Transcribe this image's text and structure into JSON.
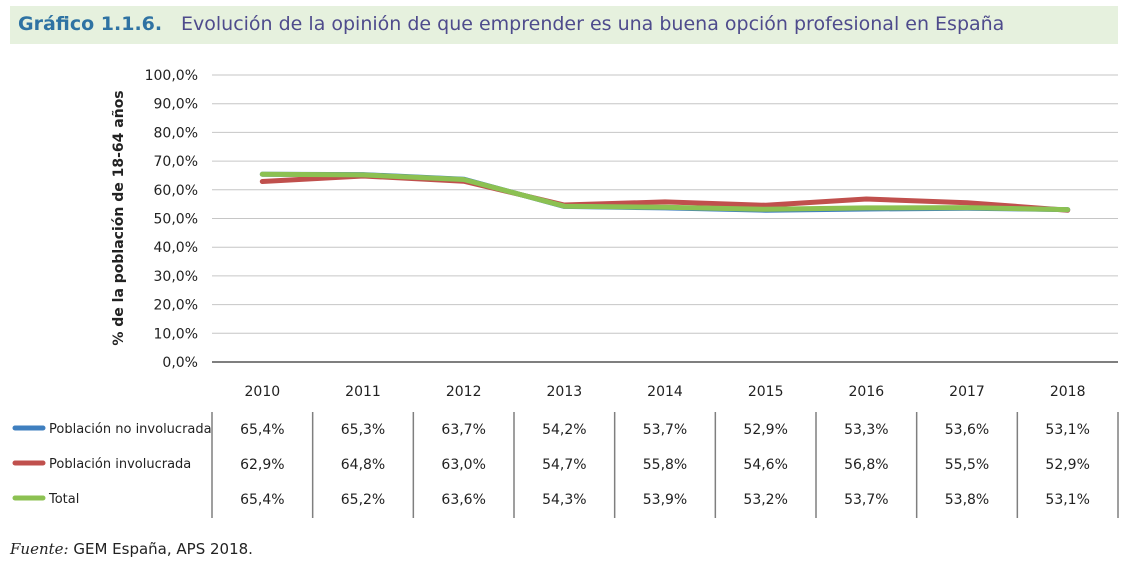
{
  "header": {
    "figure_label": "Gráfico 1.1.6.",
    "title": "Evolución de la opinión de que emprender es una buena opción profesional en España"
  },
  "source": {
    "label": "Fuente:",
    "text": "GEM España, APS 2018."
  },
  "chart_data": {
    "type": "line",
    "title": "Evolución de la opinión de que emprender es una buena opción profesional en España",
    "ylabel": "% de la población de 18-64 años",
    "xlabel": "",
    "ylim": [
      0,
      100
    ],
    "ytick_step": 10,
    "ytick_labels": [
      "0,0%",
      "10,0%",
      "20,0%",
      "30,0%",
      "40,0%",
      "50,0%",
      "60,0%",
      "70,0%",
      "80,0%",
      "90,0%",
      "100,0%"
    ],
    "grid": true,
    "legend_placement": "left, in data table",
    "categories": [
      "2010",
      "2011",
      "2012",
      "2013",
      "2014",
      "2015",
      "2016",
      "2017",
      "2018"
    ],
    "series": [
      {
        "name": "Población no involucrada",
        "color": "#3f7fbf",
        "values": [
          65.4,
          65.3,
          63.7,
          54.2,
          53.7,
          52.9,
          53.3,
          53.6,
          53.1
        ],
        "labels": [
          "65,4%",
          "65,3%",
          "63,7%",
          "54,2%",
          "53,7%",
          "52,9%",
          "53,3%",
          "53,6%",
          "53,1%"
        ]
      },
      {
        "name": "Población involucrada",
        "color": "#c0504d",
        "values": [
          62.9,
          64.8,
          63.0,
          54.7,
          55.8,
          54.6,
          56.8,
          55.5,
          52.9
        ],
        "labels": [
          "62,9%",
          "64,8%",
          "63,0%",
          "54,7%",
          "55,8%",
          "54,6%",
          "56,8%",
          "55,5%",
          "52,9%"
        ]
      },
      {
        "name": "Total",
        "color": "#8cc152",
        "values": [
          65.4,
          65.2,
          63.6,
          54.3,
          53.9,
          53.2,
          53.7,
          53.8,
          53.1
        ],
        "labels": [
          "65,4%",
          "65,2%",
          "63,6%",
          "54,3%",
          "53,9%",
          "53,2%",
          "53,7%",
          "53,8%",
          "53,1%"
        ]
      }
    ]
  }
}
